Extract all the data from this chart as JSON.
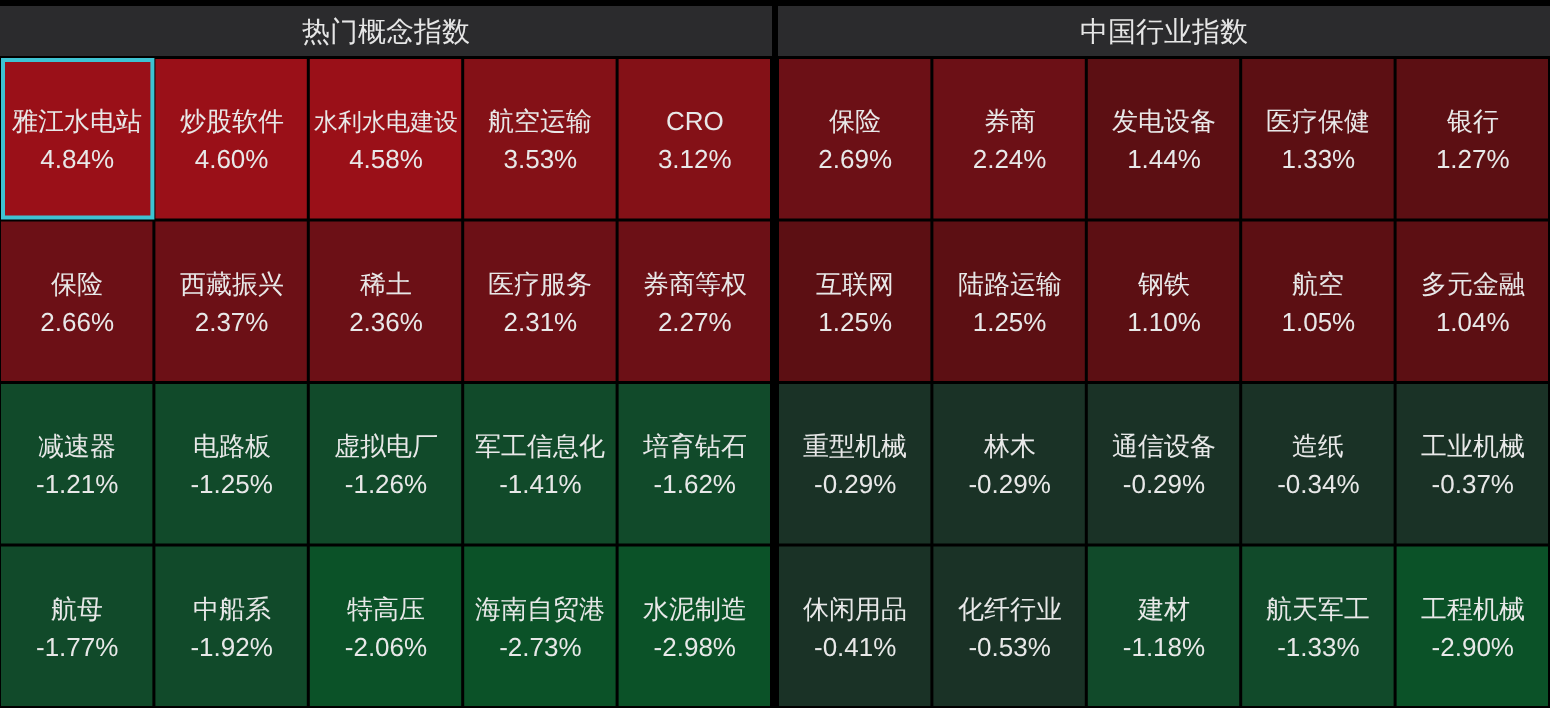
{
  "chart_data": [
    {
      "type": "other",
      "title": "热门概念指数",
      "categories": [
        "雅江水电站",
        "炒股软件",
        "水利水电建设",
        "航空运输",
        "CRO",
        "保险",
        "西藏振兴",
        "稀土",
        "医疗服务",
        "券商等权",
        "减速器",
        "电路板",
        "虚拟电厂",
        "军工信息化",
        "培育钻石",
        "航母",
        "中船系",
        "特高压",
        "海南自贸港",
        "水泥制造"
      ],
      "values": [
        4.84,
        4.6,
        4.58,
        3.53,
        3.12,
        2.66,
        2.37,
        2.36,
        2.31,
        2.27,
        -1.21,
        -1.25,
        -1.26,
        -1.41,
        -1.62,
        -1.77,
        -1.92,
        -2.06,
        -2.73,
        -2.98
      ],
      "value_labels": [
        "4.84%",
        "4.60%",
        "4.58%",
        "3.53%",
        "3.12%",
        "2.66%",
        "2.37%",
        "2.36%",
        "2.31%",
        "2.27%",
        "-1.21%",
        "-1.25%",
        "-1.26%",
        "-1.41%",
        "-1.62%",
        "-1.77%",
        "-1.92%",
        "-2.06%",
        "-2.73%",
        "-2.98%"
      ]
    },
    {
      "type": "other",
      "title": "中国行业指数",
      "categories": [
        "保险",
        "券商",
        "发电设备",
        "医疗保健",
        "银行",
        "互联网",
        "陆路运输",
        "钢铁",
        "航空",
        "多元金融",
        "重型机械",
        "林木",
        "通信设备",
        "造纸",
        "工业机械",
        "休闲用品",
        "化纤行业",
        "建材",
        "航天军工",
        "工程机械"
      ],
      "values": [
        2.69,
        2.24,
        1.44,
        1.33,
        1.27,
        1.25,
        1.25,
        1.1,
        1.05,
        1.04,
        -0.29,
        -0.29,
        -0.29,
        -0.34,
        -0.37,
        -0.41,
        -0.53,
        -1.18,
        -1.33,
        -2.9
      ],
      "value_labels": [
        "2.69%",
        "2.24%",
        "1.44%",
        "1.33%",
        "1.27%",
        "1.25%",
        "1.25%",
        "1.10%",
        "1.05%",
        "1.04%",
        "-0.29%",
        "-0.29%",
        "-0.29%",
        "-0.34%",
        "-0.37%",
        "-0.41%",
        "-0.53%",
        "-1.18%",
        "-1.33%",
        "-2.90%"
      ]
    }
  ]
}
